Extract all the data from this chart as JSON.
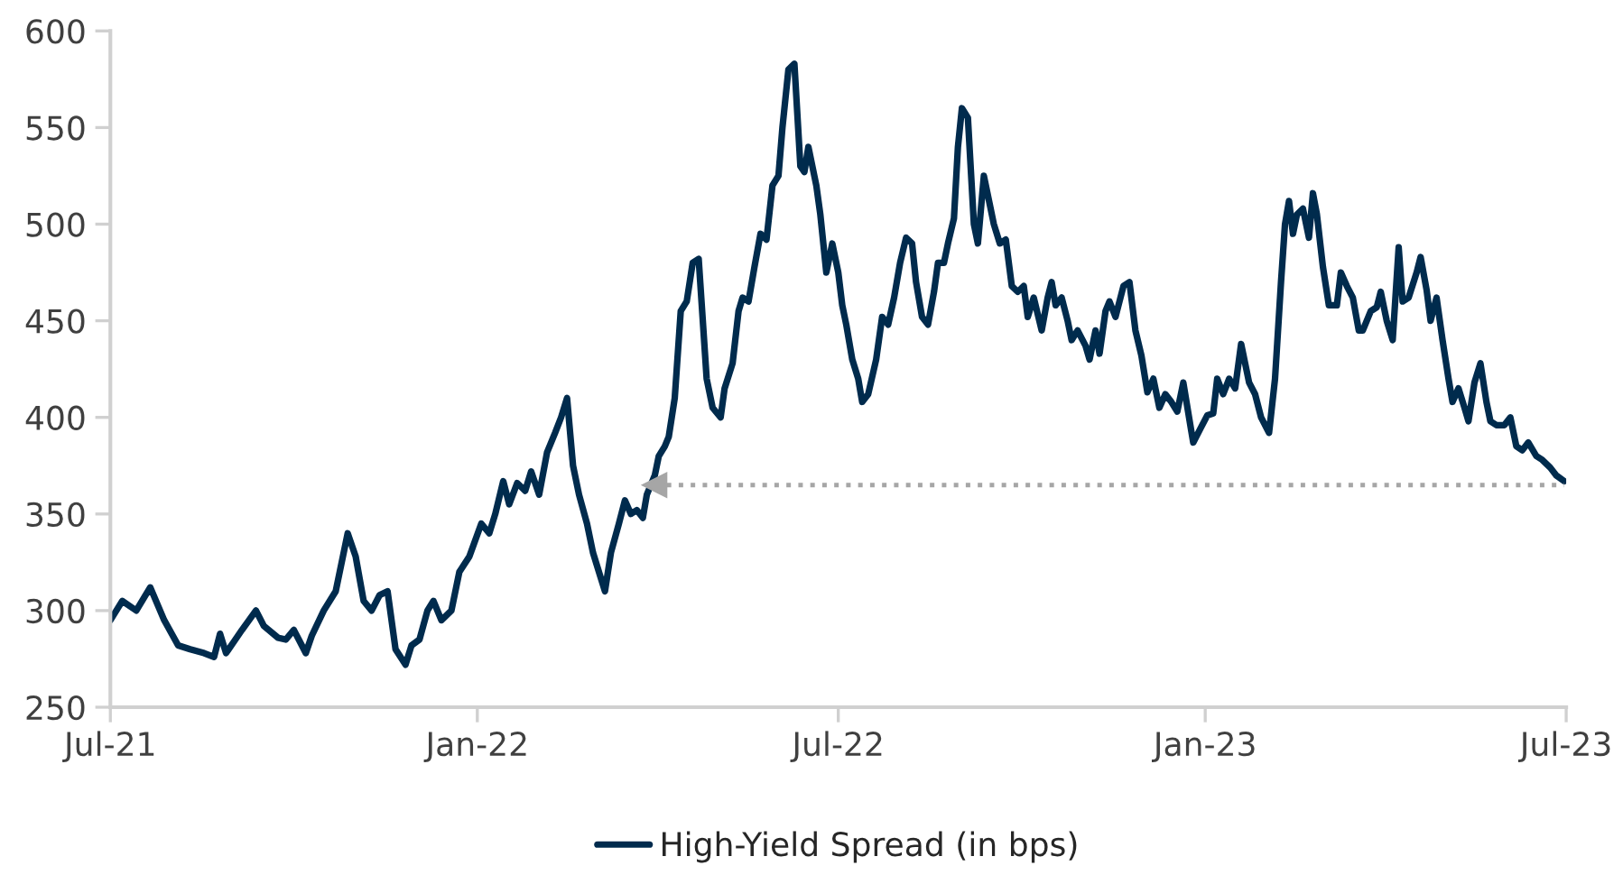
{
  "chart_data": {
    "type": "line",
    "x": [
      "2021-07-01",
      "2021-07-07",
      "2021-07-14",
      "2021-07-21",
      "2021-07-28",
      "2021-08-04",
      "2021-08-10",
      "2021-08-17",
      "2021-08-22",
      "2021-08-25",
      "2021-08-28",
      "2021-09-05",
      "2021-09-12",
      "2021-09-16",
      "2021-09-23",
      "2021-09-27",
      "2021-10-01",
      "2021-10-07",
      "2021-10-10",
      "2021-10-16",
      "2021-10-22",
      "2021-10-28",
      "2021-11-01",
      "2021-11-05",
      "2021-11-09",
      "2021-11-13",
      "2021-11-17",
      "2021-11-21",
      "2021-11-26",
      "2021-11-29",
      "2021-12-03",
      "2021-12-07",
      "2021-12-10",
      "2021-12-14",
      "2021-12-19",
      "2021-12-23",
      "2021-12-28",
      "2022-01-03",
      "2022-01-07",
      "2022-01-10",
      "2022-01-14",
      "2022-01-17",
      "2022-01-21",
      "2022-01-25",
      "2022-01-28",
      "2022-02-01",
      "2022-02-05",
      "2022-02-09",
      "2022-02-12",
      "2022-02-15",
      "2022-02-18",
      "2022-02-21",
      "2022-02-25",
      "2022-02-28",
      "2022-03-03",
      "2022-03-06",
      "2022-03-09",
      "2022-03-13",
      "2022-03-16",
      "2022-03-19",
      "2022-03-22",
      "2022-03-25",
      "2022-03-27",
      "2022-03-31",
      "2022-04-02",
      "2022-04-05",
      "2022-04-07",
      "2022-04-10",
      "2022-04-13",
      "2022-04-16",
      "2022-04-19",
      "2022-04-22",
      "2022-04-26",
      "2022-04-29",
      "2022-05-03",
      "2022-05-05",
      "2022-05-09",
      "2022-05-12",
      "2022-05-14",
      "2022-05-17",
      "2022-05-20",
      "2022-05-23",
      "2022-05-26",
      "2022-05-29",
      "2022-06-01",
      "2022-06-03",
      "2022-06-06",
      "2022-06-09",
      "2022-06-12",
      "2022-06-14",
      "2022-06-16",
      "2022-06-20",
      "2022-06-22",
      "2022-06-25",
      "2022-06-28",
      "2022-07-01",
      "2022-07-03",
      "2022-07-05",
      "2022-07-08",
      "2022-07-11",
      "2022-07-13",
      "2022-07-16",
      "2022-07-20",
      "2022-07-23",
      "2022-07-26",
      "2022-07-29",
      "2022-08-01",
      "2022-08-04",
      "2022-08-07",
      "2022-08-09",
      "2022-08-12",
      "2022-08-15",
      "2022-08-18",
      "2022-08-20",
      "2022-08-23",
      "2022-08-25",
      "2022-08-28",
      "2022-08-30",
      "2022-09-01",
      "2022-09-04",
      "2022-09-07",
      "2022-09-09",
      "2022-09-12",
      "2022-09-15",
      "2022-09-17",
      "2022-09-20",
      "2022-09-23",
      "2022-09-26",
      "2022-09-29",
      "2022-10-02",
      "2022-10-04",
      "2022-10-07",
      "2022-10-11",
      "2022-10-14",
      "2022-10-16",
      "2022-10-18",
      "2022-10-21",
      "2022-10-24",
      "2022-10-26",
      "2022-10-29",
      "2022-11-02",
      "2022-11-04",
      "2022-11-07",
      "2022-11-09",
      "2022-11-12",
      "2022-11-14",
      "2022-11-17",
      "2022-11-21",
      "2022-11-24",
      "2022-11-27",
      "2022-11-30",
      "2022-12-03",
      "2022-12-06",
      "2022-12-09",
      "2022-12-12",
      "2022-12-15",
      "2022-12-18",
      "2022-12-21",
      "2022-12-25",
      "2022-12-26",
      "2022-12-30",
      "2023-01-02",
      "2023-01-05",
      "2023-01-07",
      "2023-01-10",
      "2023-01-13",
      "2023-01-16",
      "2023-01-19",
      "2023-01-23",
      "2023-01-26",
      "2023-01-29",
      "2023-02-02",
      "2023-02-05",
      "2023-02-08",
      "2023-02-10",
      "2023-02-12",
      "2023-02-14",
      "2023-02-16",
      "2023-02-19",
      "2023-02-22",
      "2023-02-24",
      "2023-02-26",
      "2023-03-01",
      "2023-03-04",
      "2023-03-08",
      "2023-03-10",
      "2023-03-13",
      "2023-03-16",
      "2023-03-19",
      "2023-03-21",
      "2023-03-25",
      "2023-03-28",
      "2023-03-30",
      "2023-04-02",
      "2023-04-05",
      "2023-04-08",
      "2023-04-10",
      "2023-04-13",
      "2023-04-17",
      "2023-04-19",
      "2023-04-22",
      "2023-04-24",
      "2023-04-27",
      "2023-04-30",
      "2023-05-03",
      "2023-05-05",
      "2023-05-08",
      "2023-05-11",
      "2023-05-13",
      "2023-05-16",
      "2023-05-19",
      "2023-05-22",
      "2023-05-24",
      "2023-05-27",
      "2023-05-31",
      "2023-06-03",
      "2023-06-06",
      "2023-06-09",
      "2023-06-12",
      "2023-06-16",
      "2023-06-19",
      "2023-06-23",
      "2023-06-26",
      "2023-06-30"
    ],
    "series": [
      {
        "name": "High-Yield Spread (in bps)",
        "color": "#002b4d",
        "values": [
          295,
          305,
          300,
          312,
          295,
          282,
          280,
          278,
          276,
          288,
          278,
          290,
          300,
          292,
          286,
          285,
          290,
          278,
          287,
          300,
          310,
          340,
          328,
          305,
          300,
          308,
          310,
          280,
          272,
          282,
          285,
          300,
          305,
          295,
          300,
          320,
          328,
          345,
          340,
          350,
          367,
          355,
          366,
          362,
          372,
          360,
          382,
          392,
          400,
          410,
          375,
          360,
          345,
          330,
          320,
          310,
          330,
          345,
          357,
          350,
          352,
          348,
          360,
          370,
          380,
          385,
          390,
          410,
          455,
          460,
          480,
          482,
          420,
          405,
          400,
          415,
          428,
          455,
          462,
          460,
          478,
          495,
          492,
          520,
          525,
          550,
          580,
          583,
          530,
          527,
          540,
          520,
          505,
          475,
          490,
          475,
          458,
          448,
          430,
          420,
          408,
          412,
          430,
          452,
          448,
          462,
          480,
          493,
          490,
          470,
          452,
          448,
          465,
          480,
          480,
          490,
          503,
          540,
          560,
          555,
          500,
          490,
          525,
          510,
          500,
          490,
          492,
          468,
          465,
          468,
          452,
          462,
          445,
          462,
          470,
          458,
          462,
          450,
          440,
          445,
          437,
          430,
          445,
          433,
          455,
          460,
          452,
          468,
          470,
          445,
          432,
          413,
          420,
          405,
          412,
          408,
          403,
          418,
          393,
          387,
          395,
          401,
          402,
          420,
          412,
          420,
          415,
          438,
          418,
          412,
          400,
          392,
          420,
          470,
          500,
          512,
          495,
          505,
          508,
          493,
          516,
          505,
          478,
          458,
          458,
          475,
          468,
          462,
          445,
          445,
          455,
          457,
          465,
          450,
          440,
          488,
          460,
          462,
          475,
          483,
          466,
          450,
          462,
          440,
          420,
          408,
          415,
          405,
          398,
          418,
          428,
          408,
          398,
          396,
          396,
          400,
          385,
          383,
          387,
          380,
          378,
          374,
          370,
          367
        ]
      }
    ],
    "xlim": [
      "2021-07-01",
      "2023-07-01"
    ],
    "xticks": [
      {
        "value": "2021-07-01",
        "label": "Jul-21"
      },
      {
        "value": "2022-01-01",
        "label": "Jan-22"
      },
      {
        "value": "2022-07-01",
        "label": "Jul-22"
      },
      {
        "value": "2023-01-01",
        "label": "Jan-23"
      },
      {
        "value": "2023-07-01",
        "label": "Jul-23"
      }
    ],
    "ylim": [
      250,
      600
    ],
    "yticks": [
      250,
      300,
      350,
      400,
      450,
      500,
      550,
      600
    ],
    "ref_lines": [
      {
        "axis": "y",
        "value": 365,
        "color": "#a6a6a6",
        "line_style": "dotted"
      }
    ],
    "grid": false,
    "legend": "bottom",
    "marker": "none",
    "line_style": "solid"
  }
}
